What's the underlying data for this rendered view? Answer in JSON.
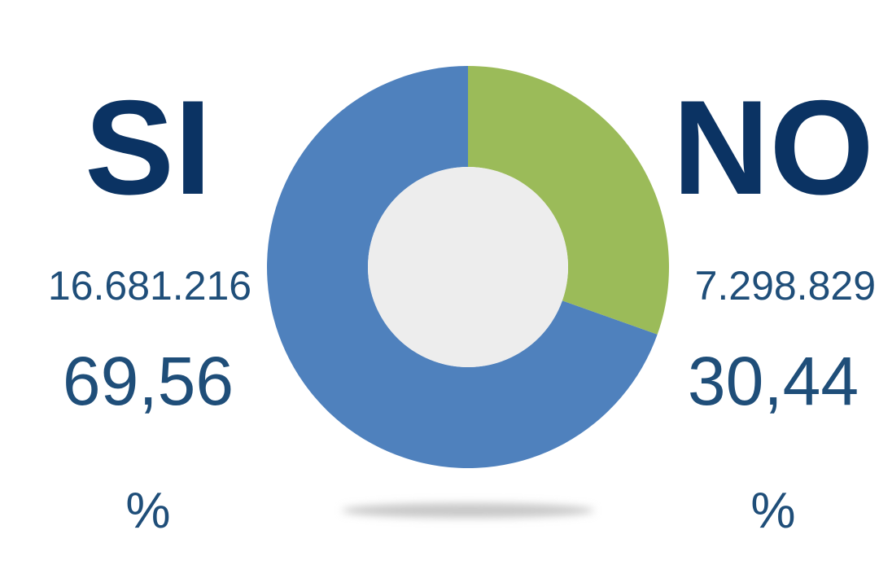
{
  "chart_data": {
    "type": "pie",
    "donut": true,
    "categories": [
      "SI",
      "NO"
    ],
    "values": [
      69.56,
      30.44
    ],
    "value_labels": [
      "69,56",
      "30,44"
    ],
    "counts": [
      16681216,
      7298829
    ],
    "count_labels": [
      "16.681.216",
      "7.298.829"
    ],
    "unit": "%",
    "colors": [
      "#4f81bd",
      "#9bbb59"
    ]
  }
}
